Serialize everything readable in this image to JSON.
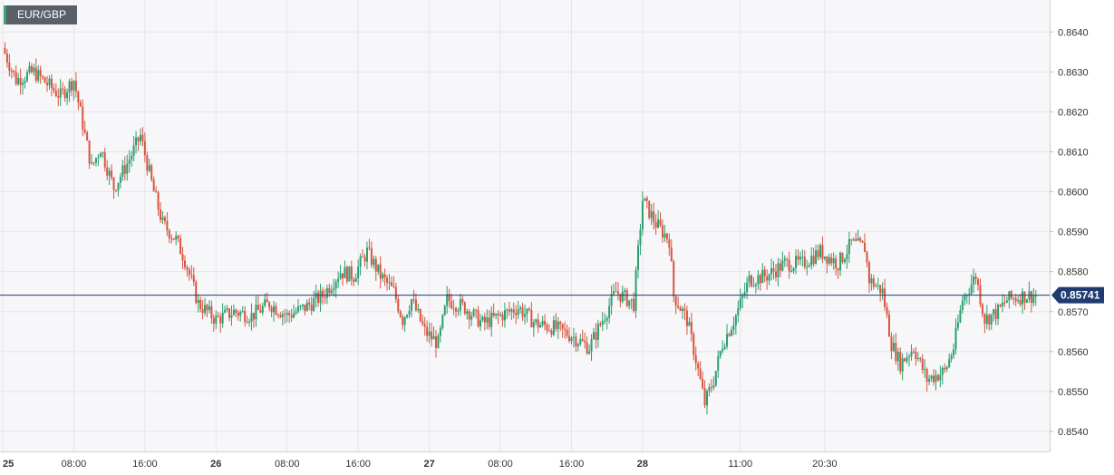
{
  "symbol": "EUR/GBP",
  "current_price": "0.85741",
  "colors": {
    "up": "#2a9e6f",
    "down": "#d9543f",
    "price_line": "#1f3b70",
    "grid": "#e6e6ea",
    "plot_bg": "#f7f7f9"
  },
  "chart_data": {
    "type": "candlestick",
    "title": "",
    "xlabel": "",
    "ylabel": "",
    "ylim": [
      0.8535,
      0.8648
    ],
    "y_ticks": [
      "0.8540",
      "0.8550",
      "0.8560",
      "0.8570",
      "0.8580",
      "0.8590",
      "0.8600",
      "0.8610",
      "0.8620",
      "0.8630",
      "0.8640"
    ],
    "x_ticks": [
      {
        "label": "25",
        "bold": true
      },
      {
        "label": "08:00",
        "bold": false
      },
      {
        "label": "16:00",
        "bold": false
      },
      {
        "label": "26",
        "bold": true
      },
      {
        "label": "08:00",
        "bold": false
      },
      {
        "label": "16:00",
        "bold": false
      },
      {
        "label": "27",
        "bold": true
      },
      {
        "label": "08:00",
        "bold": false
      },
      {
        "label": "16:00",
        "bold": false
      },
      {
        "label": "28",
        "bold": true
      },
      {
        "label": "11:00",
        "bold": false
      },
      {
        "label": "20:30",
        "bold": false
      }
    ],
    "close_path": [
      [
        0,
        0.8636
      ],
      [
        1.5,
        0.8628
      ],
      [
        3.5,
        0.863
      ],
      [
        6.5,
        0.8624
      ],
      [
        8,
        0.8628
      ],
      [
        10,
        0.8606
      ],
      [
        11,
        0.8611
      ],
      [
        12.5,
        0.8601
      ],
      [
        14,
        0.8607
      ],
      [
        15.5,
        0.8614
      ],
      [
        17,
        0.86
      ],
      [
        18,
        0.8592
      ],
      [
        19.5,
        0.8588
      ],
      [
        20.5,
        0.8583
      ],
      [
        22,
        0.8572
      ],
      [
        24,
        0.8568
      ],
      [
        26,
        0.857
      ],
      [
        28,
        0.8569
      ],
      [
        30,
        0.8572
      ],
      [
        32,
        0.8569
      ],
      [
        34,
        0.8571
      ],
      [
        36,
        0.8574
      ],
      [
        38,
        0.858
      ],
      [
        39.5,
        0.8579
      ],
      [
        41,
        0.8585
      ],
      [
        42.5,
        0.8579
      ],
      [
        44,
        0.8575
      ],
      [
        45,
        0.8568
      ],
      [
        46,
        0.8573
      ],
      [
        47.5,
        0.8565
      ],
      [
        49,
        0.8562
      ],
      [
        50,
        0.8573
      ],
      [
        52,
        0.8571
      ],
      [
        54,
        0.8567
      ],
      [
        56,
        0.8569
      ],
      [
        58,
        0.8571
      ],
      [
        60,
        0.8567
      ],
      [
        62,
        0.8566
      ],
      [
        64,
        0.8564
      ],
      [
        66,
        0.8561
      ],
      [
        67.5,
        0.8568
      ],
      [
        69,
        0.8575
      ],
      [
        71,
        0.8572
      ],
      [
        72,
        0.8598
      ],
      [
        73.5,
        0.8592
      ],
      [
        75,
        0.8588
      ],
      [
        75.5,
        0.8574
      ],
      [
        77,
        0.8568
      ],
      [
        78,
        0.8558
      ],
      [
        79,
        0.8547
      ],
      [
        80,
        0.8553
      ],
      [
        81,
        0.8562
      ],
      [
        82.5,
        0.8569
      ],
      [
        84,
        0.8578
      ],
      [
        86,
        0.8579
      ],
      [
        88,
        0.8582
      ],
      [
        90,
        0.8582
      ],
      [
        92,
        0.8585
      ],
      [
        94,
        0.8582
      ],
      [
        95.5,
        0.8587
      ],
      [
        97,
        0.8586
      ],
      [
        97.5,
        0.8578
      ],
      [
        99,
        0.8575
      ],
      [
        100,
        0.8562
      ],
      [
        101,
        0.8557
      ],
      [
        102.5,
        0.8561
      ],
      [
        104,
        0.8553
      ],
      [
        106,
        0.8555
      ],
      [
        107,
        0.8561
      ],
      [
        108,
        0.8573
      ],
      [
        109.5,
        0.8579
      ],
      [
        110.5,
        0.8568
      ],
      [
        112,
        0.857
      ],
      [
        113,
        0.8573
      ],
      [
        115,
        0.8574
      ],
      [
        116.3,
        0.8574
      ]
    ],
    "x_range": [
      0,
      117.5
    ]
  }
}
